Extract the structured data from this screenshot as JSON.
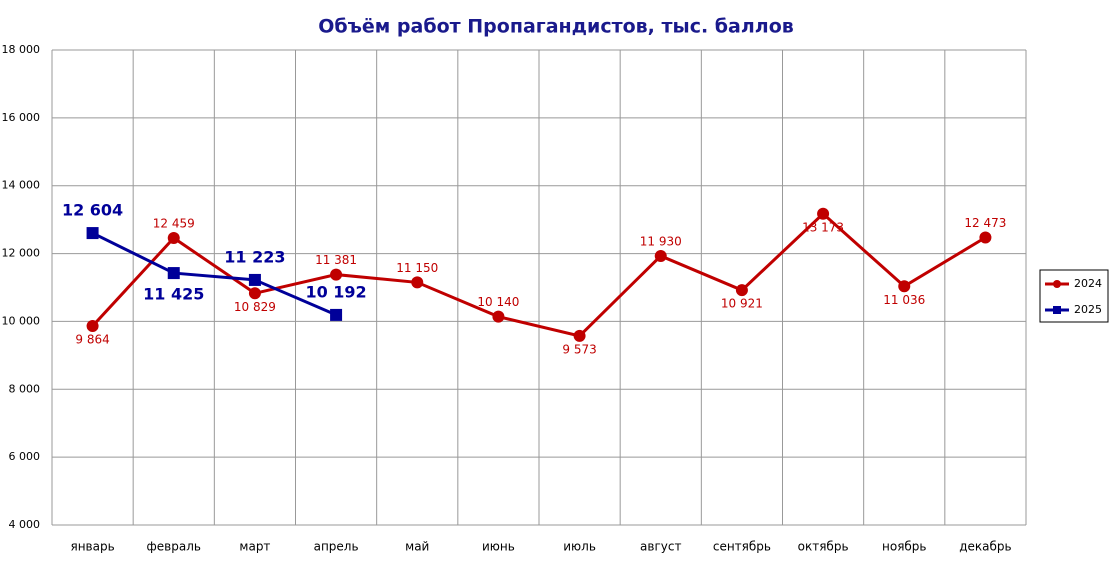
{
  "chart_data": {
    "type": "line",
    "title": "Объём работ Пропагандистов, тыс. баллов",
    "categories": [
      "январь",
      "февраль",
      "март",
      "апрель",
      "май",
      "июнь",
      "июль",
      "август",
      "сентябрь",
      "октябрь",
      "ноябрь",
      "декабрь"
    ],
    "series": [
      {
        "name": "2024",
        "color": "#c00000",
        "values": [
          9864,
          12459,
          10829,
          11381,
          11150,
          10140,
          9573,
          11930,
          10921,
          13173,
          11036,
          12473
        ],
        "value_labels": [
          "9 864",
          "12 459",
          "10 829",
          "11 381",
          "11 150",
          "10 140",
          "9 573",
          "11 930",
          "10 921",
          "13 173",
          "11 036",
          "12 473"
        ]
      },
      {
        "name": "2025",
        "color": "#000099",
        "values": [
          12604,
          11425,
          11223,
          10192,
          null,
          null,
          null,
          null,
          null,
          null,
          null,
          null
        ],
        "value_labels": [
          "12 604",
          "11 425",
          "11 223",
          "10 192",
          null,
          null,
          null,
          null,
          null,
          null,
          null,
          null
        ]
      }
    ],
    "ylim": [
      4000,
      18000
    ],
    "yticks": [
      {
        "value": 4000,
        "label": "4 000"
      },
      {
        "value": 6000,
        "label": "6 000"
      },
      {
        "value": 8000,
        "label": "8 000"
      },
      {
        "value": 10000,
        "label": "10 000"
      },
      {
        "value": 12000,
        "label": "12 000"
      },
      {
        "value": 14000,
        "label": "14 000"
      },
      {
        "value": 16000,
        "label": "16 000"
      },
      {
        "value": 18000,
        "label": "18 000"
      }
    ],
    "grid": true,
    "legend": "right"
  }
}
